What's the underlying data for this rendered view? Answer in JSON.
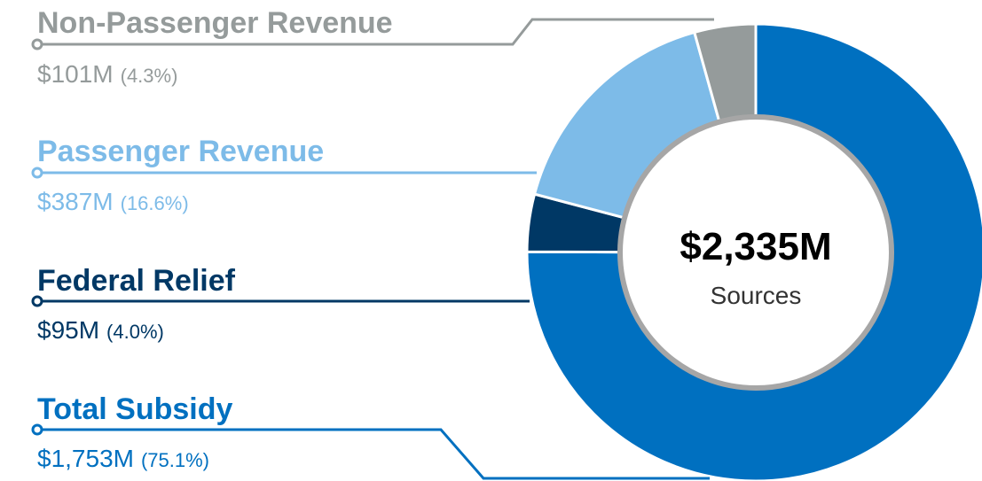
{
  "chart_data": {
    "type": "donut",
    "title": "$2,335M",
    "subtitle": "Sources",
    "series": [
      {
        "name": "Total Subsidy",
        "value": 1753,
        "value_label": "$1,753M",
        "percent": 75.1,
        "percent_label": "(75.1%)",
        "color": "#0070c0"
      },
      {
        "name": "Federal Relief",
        "value": 95,
        "value_label": "$95M",
        "percent": 4.0,
        "percent_label": "(4.0%)",
        "color": "#003865"
      },
      {
        "name": "Passenger Revenue",
        "value": 387,
        "value_label": "$387M",
        "percent": 16.6,
        "percent_label": "(16.6%)",
        "color": "#7dbbe8"
      },
      {
        "name": "Non-Passenger Revenue",
        "value": 101,
        "value_label": "$101M",
        "percent": 4.3,
        "percent_label": "(4.3%)",
        "color": "#959b9b"
      }
    ]
  }
}
